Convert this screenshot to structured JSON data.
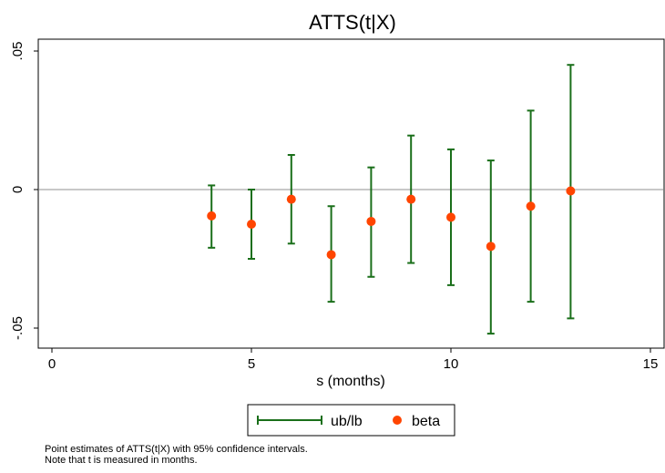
{
  "chart_data": {
    "type": "scatter",
    "title": "ATTS(t|X)",
    "xlabel": "s (months)",
    "ylabel": "",
    "xlim": [
      0,
      15
    ],
    "ylim": [
      -0.05,
      0.05
    ],
    "x_ticks": [
      0,
      5,
      10,
      15
    ],
    "x_tick_labels": [
      "0",
      "5",
      "10",
      "15"
    ],
    "y_ticks": [
      -0.05,
      0,
      0.05
    ],
    "y_tick_labels": [
      "-.05",
      "0",
      ".05"
    ],
    "reference_line_y": 0,
    "grid": false,
    "legend_position": "bottom",
    "x": [
      4,
      5,
      6,
      7,
      8,
      9,
      10,
      11,
      12,
      13
    ],
    "series": [
      {
        "name": "ub/lb",
        "kind": "errorbar",
        "color": "#1a6f1a",
        "ub": [
          0.0015,
          0.0,
          0.0125,
          -0.006,
          0.008,
          0.0195,
          0.0145,
          0.0105,
          0.0285,
          0.045
        ],
        "lb": [
          -0.021,
          -0.025,
          -0.0195,
          -0.0405,
          -0.0315,
          -0.0265,
          -0.0345,
          -0.052,
          -0.0405,
          -0.0465
        ]
      },
      {
        "name": "beta",
        "kind": "point",
        "color": "#ff4500",
        "values": [
          -0.0095,
          -0.0125,
          -0.0035,
          -0.0235,
          -0.0115,
          -0.0035,
          -0.01,
          -0.0205,
          -0.006,
          -0.0005
        ]
      }
    ],
    "note_lines": [
      "Point estimates of ATTS(t|X) with 95% confidence intervals.",
      "Note that t is measured in months."
    ]
  },
  "colors": {
    "errorbar": "#1a6f1a",
    "point": "#ff4500",
    "zero_line": "#c8c8c8",
    "frame": "#000000"
  }
}
